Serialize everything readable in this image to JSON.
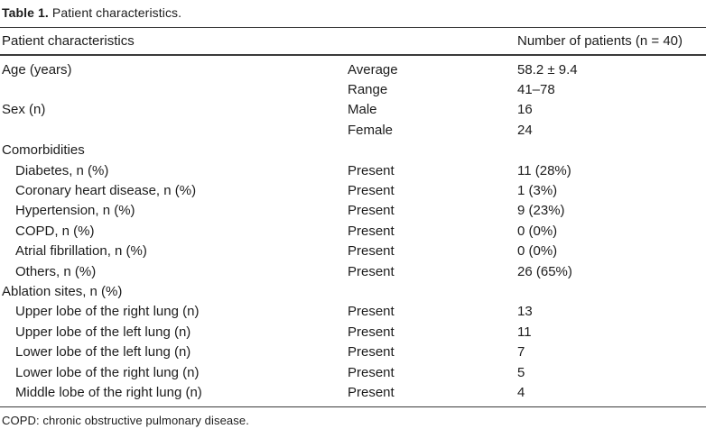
{
  "caption": {
    "label": "Table 1.",
    "text": "Patient characteristics."
  },
  "table": {
    "header": {
      "col1": "Patient characteristics",
      "col3": "Number of patients (n = 40)"
    },
    "rows": [
      {
        "c1": "Age (years)",
        "c2": "Average",
        "c3": "58.2 ± 9.4",
        "indent": false
      },
      {
        "c1": "",
        "c2": "Range",
        "c3": "41–78",
        "indent": false
      },
      {
        "c1": "Sex (n)",
        "c2": "Male",
        "c3": "16",
        "indent": false
      },
      {
        "c1": "",
        "c2": "Female",
        "c3": "24",
        "indent": false
      },
      {
        "c1": "Comorbidities",
        "c2": "",
        "c3": "",
        "indent": false
      },
      {
        "c1": "Diabetes, n (%)",
        "c2": "Present",
        "c3": "11 (28%)",
        "indent": true
      },
      {
        "c1": "Coronary heart disease, n (%)",
        "c2": "Present",
        "c3": "1 (3%)",
        "indent": true
      },
      {
        "c1": "Hypertension, n (%)",
        "c2": "Present",
        "c3": "9 (23%)",
        "indent": true
      },
      {
        "c1": "COPD, n (%)",
        "c2": "Present",
        "c3": "0 (0%)",
        "indent": true
      },
      {
        "c1": "Atrial fibrillation, n (%)",
        "c2": "Present",
        "c3": "0 (0%)",
        "indent": true
      },
      {
        "c1": "Others, n (%)",
        "c2": "Present",
        "c3": "26 (65%)",
        "indent": true
      },
      {
        "c1": "Ablation sites, n (%)",
        "c2": "",
        "c3": "",
        "indent": false
      },
      {
        "c1": "Upper lobe of the right lung (n)",
        "c2": "Present",
        "c3": "13",
        "indent": true
      },
      {
        "c1": "Upper lobe of the left lung (n)",
        "c2": "Present",
        "c3": "11",
        "indent": true
      },
      {
        "c1": "Lower lobe of the left lung (n)",
        "c2": "Present",
        "c3": "7",
        "indent": true
      },
      {
        "c1": "Lower lobe of the right lung (n)",
        "c2": "Present",
        "c3": "5",
        "indent": true
      },
      {
        "c1": "Middle lobe of the right lung (n)",
        "c2": "Present",
        "c3": "4",
        "indent": true
      }
    ],
    "footnote": "COPD: chronic obstructive pulmonary disease."
  }
}
